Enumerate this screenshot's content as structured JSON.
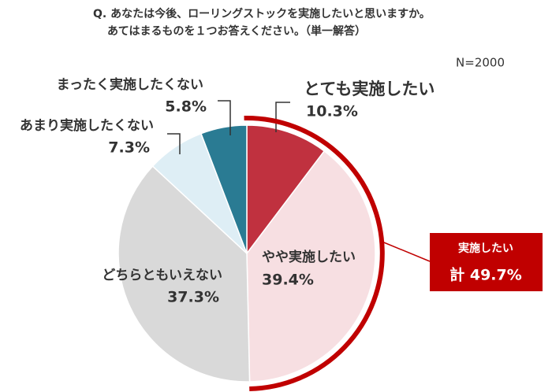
{
  "chart_data": {
    "type": "pie",
    "title": "Q. あなたは今後、ローリングストックを実施したいと思いますか。",
    "subtitle": "あてはまるものを１つお答えください。（単一解答）",
    "note": "N=2000",
    "categories": [
      "とても実施したい",
      "やや実施したい",
      "どちらともいえない",
      "あまり実施したくない",
      "まったく実施したくない"
    ],
    "values": [
      10.3,
      39.4,
      37.3,
      7.3,
      5.8
    ],
    "value_labels": [
      "10.3%",
      "39.4%",
      "37.3%",
      "7.3%",
      "5.8%"
    ],
    "colors": [
      "#c0313f",
      "#f7dfe2",
      "#d9d9d9",
      "#deeef5",
      "#2a7b93"
    ],
    "total": {
      "label": "実施したい",
      "value": 49.7,
      "value_label": "計 49.7%",
      "color": "#c00000"
    }
  }
}
